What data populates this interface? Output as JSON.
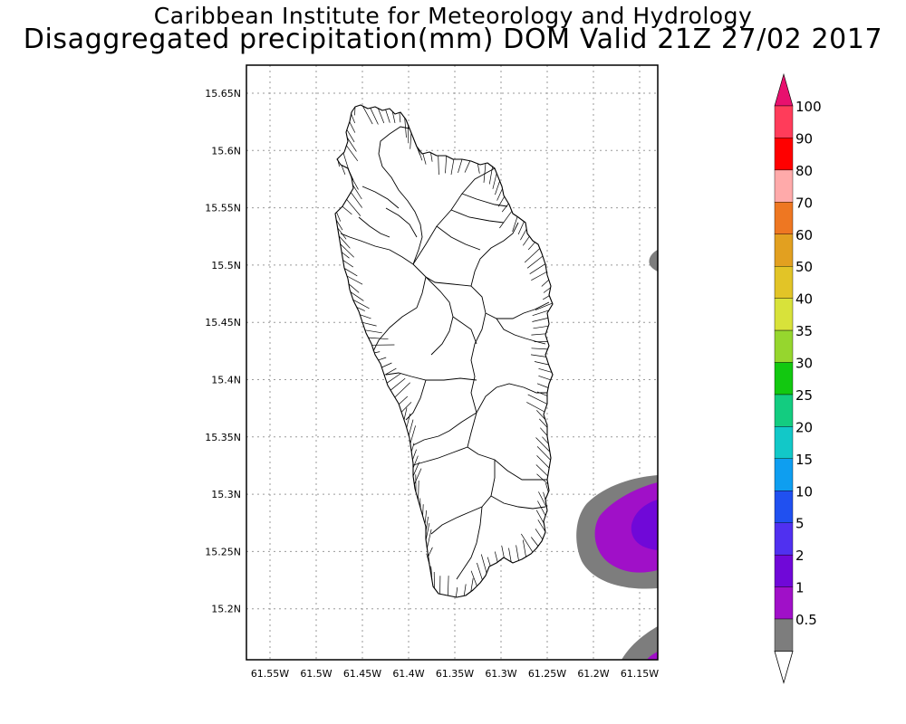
{
  "title": "Caribbean Institute for Meteorology and Hydrology",
  "subtitle": "Disaggregated precipitation(mm) DOM Valid 21Z 27/02 2017",
  "map": {
    "lon_ticks": [
      "61.55W",
      "61.5W",
      "61.45W",
      "61.4W",
      "61.35W",
      "61.3W",
      "61.25W",
      "61.2W",
      "61.15W"
    ],
    "lat_ticks": [
      "15.65N",
      "15.6N",
      "15.55N",
      "15.5N",
      "15.45N",
      "15.4N",
      "15.35N",
      "15.3N",
      "15.25N",
      "15.2N"
    ],
    "gridlines": true,
    "land_fill": "#ffffff",
    "outline_color": "#000000"
  },
  "colorbar": {
    "labels": [
      "100",
      "90",
      "80",
      "70",
      "60",
      "50",
      "40",
      "35",
      "30",
      "25",
      "20",
      "15",
      "10",
      "5",
      "2",
      "1",
      "0.5"
    ],
    "colors": [
      "#ff3c5a",
      "#ff0000",
      "#ffaaaa",
      "#ee7722",
      "#e2a020",
      "#e2c427",
      "#d8e23a",
      "#96d62e",
      "#12c810",
      "#13cc80",
      "#12c8c8",
      "#0e9ef0",
      "#2050f0",
      "#5030f0",
      "#7008d8",
      "#a010c8",
      "#7d7d7d"
    ],
    "top_arrow_color": "#e8106e",
    "bottom_arrow_color": "#ffffff"
  },
  "precip_colors": {
    "c_0_5": "#7d7d7d",
    "c_1": "#a010c8",
    "c_2": "#7008d8"
  }
}
